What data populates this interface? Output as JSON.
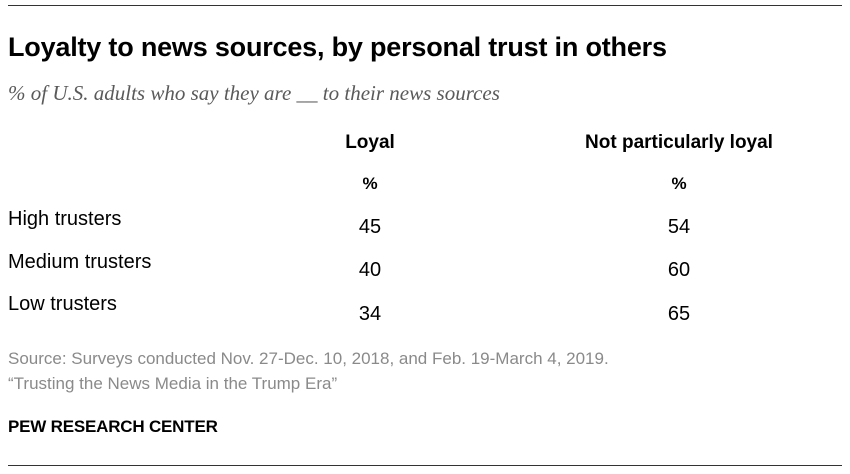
{
  "title": "Loyalty to news sources, by personal trust in others",
  "subtitle": "% of U.S. adults who say they are __ to their news sources",
  "chart_data": {
    "type": "table",
    "columns": [
      "Loyal",
      "Not particularly loyal"
    ],
    "unit": "%",
    "rows": [
      {
        "label": "High trusters",
        "values": [
          45,
          54
        ]
      },
      {
        "label": "Medium trusters",
        "values": [
          40,
          60
        ]
      },
      {
        "label": "Low trusters",
        "values": [
          34,
          65
        ]
      }
    ]
  },
  "source_lines": [
    "Source: Surveys conducted Nov. 27-Dec. 10, 2018, and Feb. 19-March 4, 2019.",
    "“Trusting the News Media in the Trump Era”"
  ],
  "brand": "PEW RESEARCH CENTER"
}
